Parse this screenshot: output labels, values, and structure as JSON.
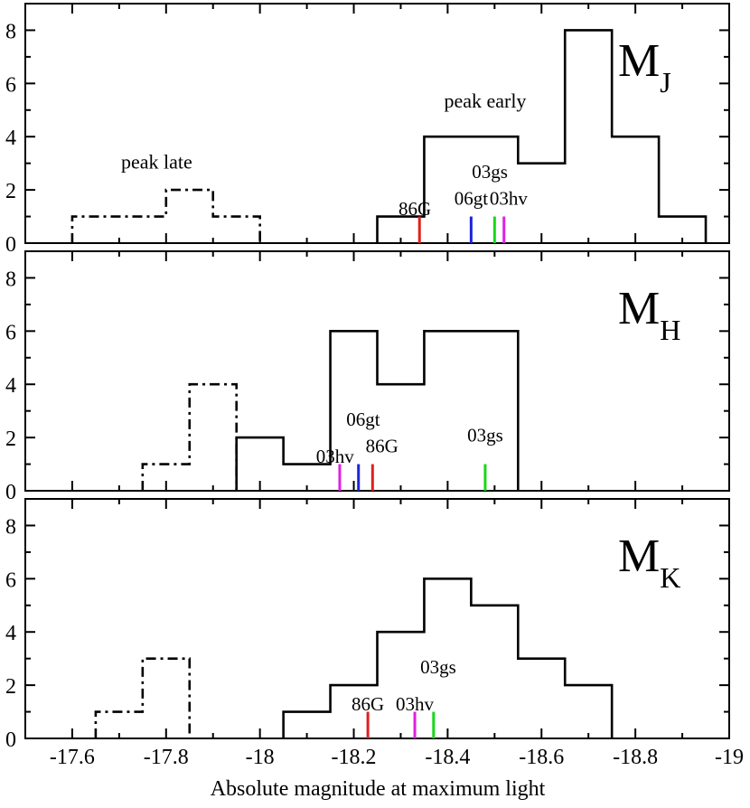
{
  "chart_data": {
    "type": "histogram",
    "xlabel": "Absolute magnitude at maximum light",
    "xlim": [
      -17.5,
      -19.0
    ],
    "x_ticks": [
      -17.6,
      -17.8,
      -18.0,
      -18.2,
      -18.4,
      -18.6,
      -18.8,
      -19.0
    ],
    "x_tick_labels": [
      "-17.6",
      "-17.8",
      "-18",
      "-18.2",
      "-18.4",
      "-18.6",
      "-18.8",
      "-19"
    ],
    "colors": {
      "86G": "#e0201c",
      "06gt": "#1c24d6",
      "03gs": "#18d818",
      "03hv": "#e020e0",
      "line": "#000000"
    },
    "panels": [
      {
        "band": "M",
        "band_sub": "J",
        "ylim": [
          0,
          9
        ],
        "y_ticks": [
          0,
          2,
          4,
          6,
          8
        ],
        "y_tick_labels": [
          "0",
          "2",
          "4",
          "6",
          "8"
        ],
        "series": [
          {
            "name": "peak early",
            "style": "solid",
            "edges": [
              -18.25,
              -18.35,
              -18.55,
              -18.65,
              -18.75,
              -18.85,
              -18.95
            ],
            "counts": [
              1,
              4,
              3,
              8,
              4,
              1
            ]
          },
          {
            "name": "peak late",
            "style": "dashdot",
            "edges": [
              -17.6,
              -17.8,
              -17.9,
              -18.0
            ],
            "counts": [
              1,
              2,
              1
            ]
          }
        ],
        "series_labels": [
          {
            "text": "peak early",
            "x": -18.48,
            "y": 5.1
          },
          {
            "text": "peak late",
            "x": -17.78,
            "y": 2.8
          }
        ],
        "markers": [
          {
            "name": "86G",
            "x": -18.34,
            "label_x": -18.33,
            "label_y": 1.05
          },
          {
            "name": "06gt",
            "x": -18.45,
            "label_x": -18.45,
            "label_y": 1.45
          },
          {
            "name": "03gs",
            "x": -18.5,
            "label_x": -18.49,
            "label_y": 2.45
          },
          {
            "name": "03hv",
            "x": -18.52,
            "label_x": -18.53,
            "label_y": 1.45
          }
        ]
      },
      {
        "band": "M",
        "band_sub": "H",
        "ylim": [
          0,
          9
        ],
        "y_ticks": [
          0,
          2,
          4,
          6,
          8
        ],
        "y_tick_labels": [
          "0",
          "2",
          "4",
          "6",
          "8"
        ],
        "series": [
          {
            "name": "peak early",
            "style": "solid",
            "edges": [
              -17.95,
              -18.05,
              -18.15,
              -18.25,
              -18.35,
              -18.55
            ],
            "counts": [
              2,
              1,
              6,
              4,
              6
            ]
          },
          {
            "name": "peak late",
            "style": "dashdot",
            "edges": [
              -17.75,
              -17.85,
              -17.95
            ],
            "counts": [
              1,
              4
            ]
          }
        ],
        "series_labels": [],
        "markers": [
          {
            "name": "06gt",
            "x": -18.21,
            "label_x": -18.22,
            "label_y": 2.45
          },
          {
            "name": "03hv",
            "x": -18.17,
            "label_x": -18.16,
            "label_y": 1.05
          },
          {
            "name": "86G",
            "x": -18.24,
            "label_x": -18.26,
            "label_y": 1.45
          },
          {
            "name": "03gs",
            "x": -18.48,
            "label_x": -18.48,
            "label_y": 1.85
          }
        ]
      },
      {
        "band": "M",
        "band_sub": "K",
        "ylim": [
          0,
          9
        ],
        "y_ticks": [
          0,
          2,
          4,
          6,
          8
        ],
        "y_tick_labels": [
          "0",
          "2",
          "4",
          "6",
          "8"
        ],
        "series": [
          {
            "name": "peak early",
            "style": "solid",
            "edges": [
              -18.05,
              -18.15,
              -18.25,
              -18.35,
              -18.45,
              -18.55,
              -18.65,
              -18.75
            ],
            "counts": [
              1,
              2,
              4,
              6,
              5,
              3,
              2
            ]
          },
          {
            "name": "peak late",
            "style": "dashdot",
            "edges": [
              -17.65,
              -17.75,
              -17.85
            ],
            "counts": [
              1,
              3
            ]
          }
        ],
        "series_labels": [],
        "markers": [
          {
            "name": "86G",
            "x": -18.23,
            "label_x": -18.23,
            "label_y": 1.05
          },
          {
            "name": "03hv",
            "x": -18.33,
            "label_x": -18.33,
            "label_y": 1.05
          },
          {
            "name": "03gs",
            "x": -18.37,
            "label_x": -18.38,
            "label_y": 2.45
          }
        ]
      }
    ]
  }
}
